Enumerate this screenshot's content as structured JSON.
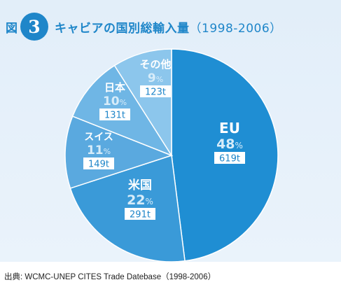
{
  "header": {
    "figure_label": "図",
    "figure_number": "3",
    "title": "キャビアの国別総輸入量",
    "period": "（1998-2006）"
  },
  "source": "出典: WCMC-UNEP CITES Trade Datebase（1998-2006）",
  "colors": {
    "accent": "#1f86c9",
    "slice_eu": "#1f8ed3",
    "slice_us": "#3a9ad8",
    "slice_swiss": "#5aa9df",
    "slice_japan": "#6fb6e5",
    "slice_other": "#8cc6ec",
    "tonnage_text": "#1f86c9",
    "pct_text_light": "#d7ecf9"
  },
  "chart_data": {
    "type": "pie",
    "title": "キャビアの国別総輸入量（1998-2006）",
    "unit_percent": "%",
    "slices": [
      {
        "label": "EU",
        "percent": 48,
        "percent_text": "48",
        "tonnage": "619t"
      },
      {
        "label": "米国",
        "percent": 22,
        "percent_text": "22",
        "tonnage": "291t"
      },
      {
        "label": "スイス",
        "percent": 11,
        "percent_text": "11",
        "tonnage": "149t"
      },
      {
        "label": "日本",
        "percent": 10,
        "percent_text": "10",
        "tonnage": "131t"
      },
      {
        "label": "その他",
        "percent": 9,
        "percent_text": "9",
        "tonnage": "123t"
      }
    ]
  }
}
